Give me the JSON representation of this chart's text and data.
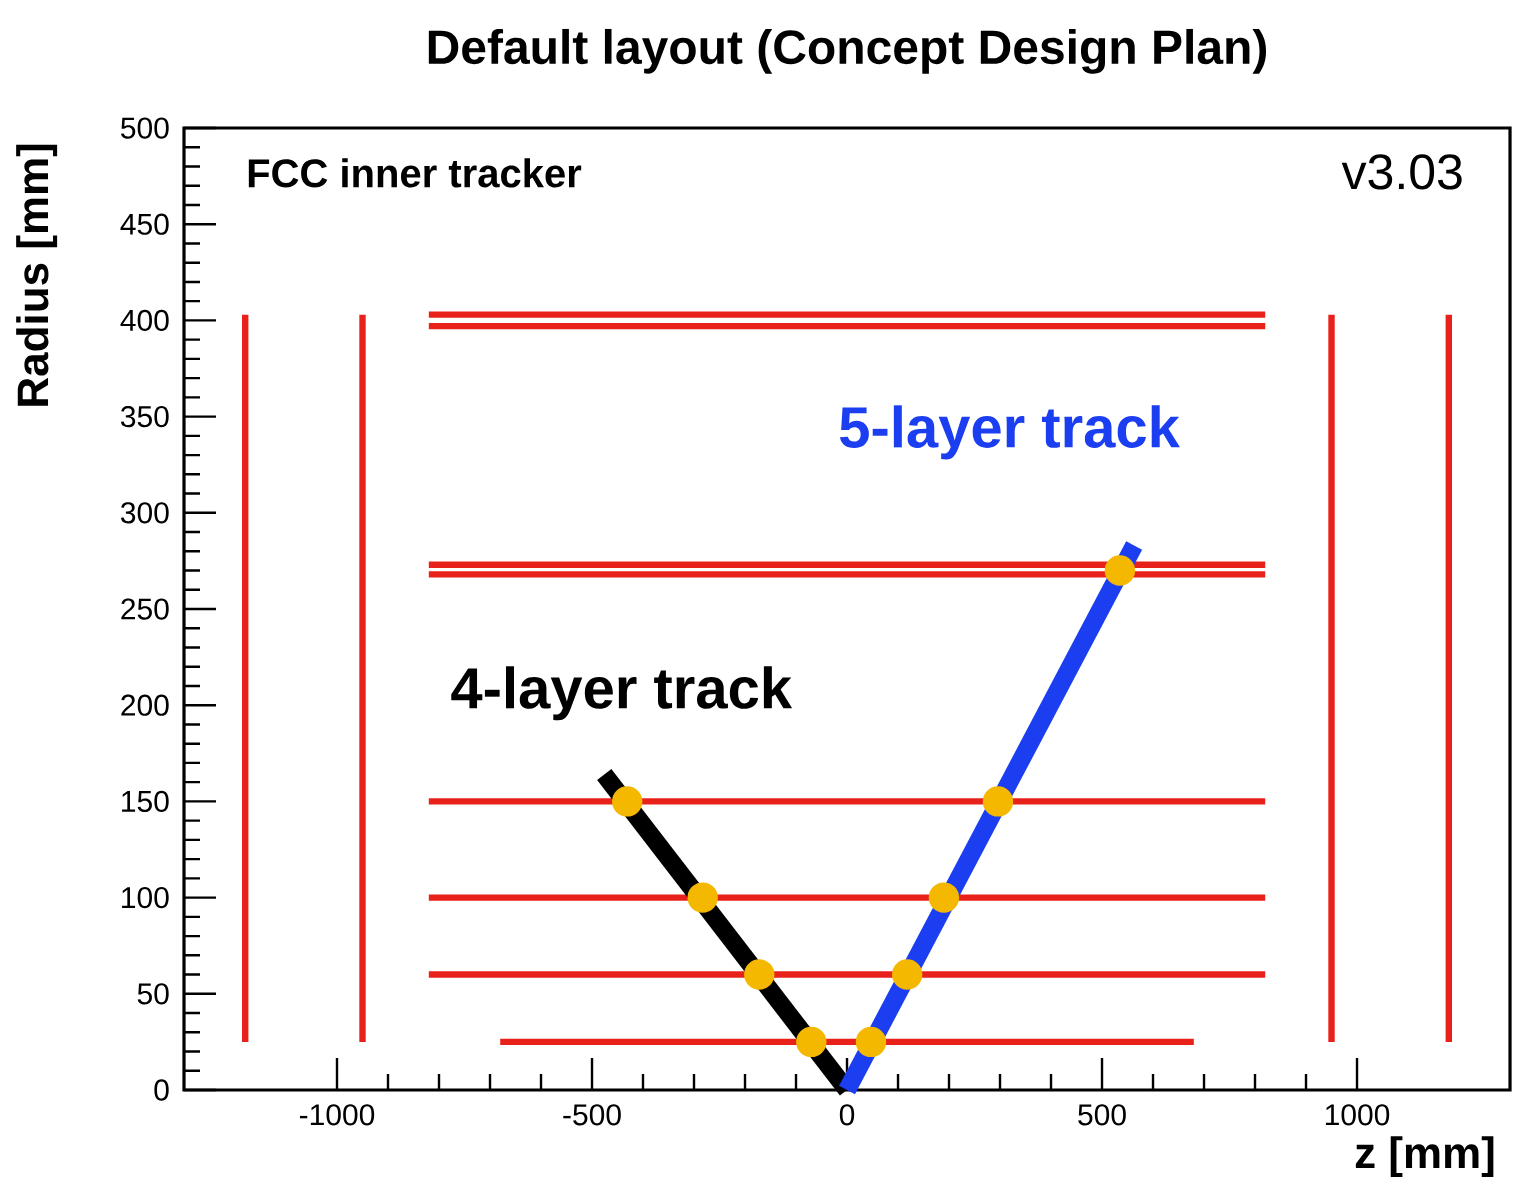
{
  "chart_data": {
    "type": "line",
    "title": "Default layout (Concept Design Plan)",
    "xlabel": "z [mm]",
    "ylabel": "Radius [mm]",
    "annotations": [
      "FCC inner tracker",
      "v3.03"
    ],
    "xlim": [
      -1300,
      1300
    ],
    "ylim": [
      0,
      500
    ],
    "xticks": [
      -1000,
      -500,
      0,
      500,
      1000
    ],
    "yticks": [
      0,
      50,
      100,
      150,
      200,
      250,
      300,
      350,
      400,
      450,
      500
    ],
    "series": [
      {
        "color": "#e8221b",
        "x": [
          -680,
          680
        ],
        "values": [
          25,
          25
        ]
      },
      {
        "color": "#e8221b",
        "x": [
          -820,
          820
        ],
        "values": [
          60,
          60
        ]
      },
      {
        "color": "#e8221b",
        "x": [
          -820,
          820
        ],
        "values": [
          100,
          100
        ]
      },
      {
        "color": "#e8221b",
        "x": [
          -820,
          820
        ],
        "values": [
          150,
          150
        ]
      },
      {
        "color": "#e8221b",
        "x": [
          -820,
          820
        ],
        "values": [
          268,
          268
        ]
      },
      {
        "color": "#e8221b",
        "x": [
          -820,
          820
        ],
        "values": [
          273,
          273
        ]
      },
      {
        "color": "#e8221b",
        "x": [
          -820,
          820
        ],
        "values": [
          397,
          397
        ]
      },
      {
        "color": "#e8221b",
        "x": [
          -820,
          820
        ],
        "values": [
          403,
          403
        ]
      },
      {
        "color": "#e8221b",
        "x": [
          -1180,
          -1180
        ],
        "values": [
          25,
          403
        ]
      },
      {
        "color": "#e8221b",
        "x": [
          -950,
          -950
        ],
        "values": [
          25,
          403
        ]
      },
      {
        "color": "#e8221b",
        "x": [
          950,
          950
        ],
        "values": [
          25,
          403
        ]
      },
      {
        "color": "#e8221b",
        "x": [
          1180,
          1180
        ],
        "values": [
          25,
          403
        ]
      },
      {
        "name": "4-layer track",
        "color": "#000000",
        "x": [
          0,
          -476
        ],
        "values": [
          0,
          164
        ]
      },
      {
        "name": "5-layer track",
        "color": "#1a3ef0",
        "x": [
          0,
          563
        ],
        "values": [
          0,
          283
        ]
      },
      {
        "type": "scatter",
        "color": "#f5b800",
        "x": [
          -70,
          -172,
          -283,
          -431,
          47,
          118,
          190,
          296,
          535
        ],
        "values": [
          25,
          60,
          100,
          150,
          25,
          60,
          100,
          150,
          270
        ]
      }
    ]
  }
}
